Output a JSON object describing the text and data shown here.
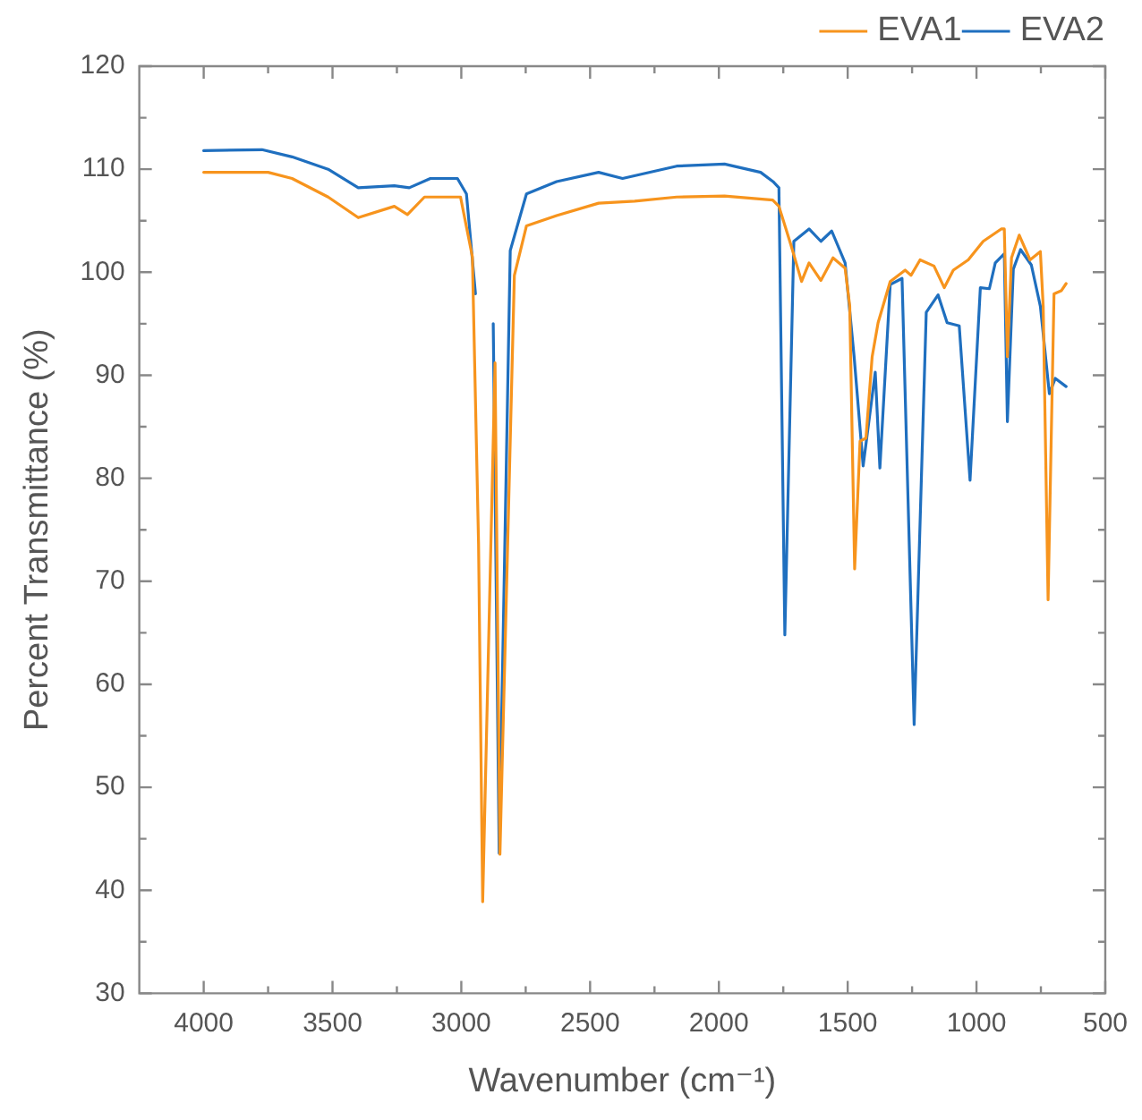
{
  "chart_data": {
    "type": "line",
    "xlabel": "Wavenumber (cm⁻¹)",
    "ylabel": "Percent Transmittance (%)",
    "xlim": [
      4250,
      500
    ],
    "xticks": [
      4000,
      {
        "value": 3750,
        "label": null
      },
      3500,
      {
        "value": 3250,
        "label": null
      },
      3000,
      {
        "value": 2750,
        "label": null
      },
      2500,
      {
        "value": 2250,
        "label": null
      },
      2000,
      {
        "value": 1750,
        "label": null
      },
      1500,
      {
        "value": 1250,
        "label": null
      },
      1000,
      {
        "value": 750,
        "label": null
      },
      500
    ],
    "ylim": [
      30,
      120
    ],
    "yticks": [
      30,
      {
        "value": 35,
        "label": null
      },
      40,
      {
        "value": 45,
        "label": null
      },
      50,
      {
        "value": 55,
        "label": null
      },
      60,
      {
        "value": 65,
        "label": null
      },
      70,
      {
        "value": 75,
        "label": null
      },
      80,
      {
        "value": 85,
        "label": null
      },
      90,
      {
        "value": 95,
        "label": null
      },
      100,
      {
        "value": 105,
        "label": null
      },
      110,
      {
        "value": 115,
        "label": null
      },
      120
    ],
    "grid": false,
    "legend": "top right",
    "marker": "none",
    "line_style": "solid",
    "series": [
      {
        "name": "EVA1",
        "color": "#f7941d",
        "x": [
          4000,
          3750,
          3657,
          3517,
          3400,
          3260,
          3209,
          3143,
          3003,
          2957,
          2933,
          2917,
          2869,
          2850,
          2794,
          2747,
          2630,
          2467,
          2327,
          2164,
          1978,
          1791,
          1767,
          1721,
          1679,
          1650,
          1604,
          1557,
          1510,
          1492,
          1473,
          1452,
          1429,
          1405,
          1382,
          1335,
          1277,
          1254,
          1219,
          1165,
          1125,
          1090,
          1032,
          974,
          904,
          892,
          880,
          864,
          834,
          792,
          752,
          741,
          722,
          699,
          671,
          652
        ],
        "values": [
          109.7,
          109.7,
          109.1,
          107.3,
          105.3,
          106.4,
          105.6,
          107.3,
          107.3,
          101.5,
          73.6,
          38.9,
          91.2,
          43.5,
          99.7,
          104.5,
          105.5,
          106.7,
          106.9,
          107.3,
          107.4,
          107.0,
          106.4,
          102.7,
          99.1,
          100.9,
          99.2,
          101.4,
          100.4,
          96.7,
          71.2,
          83.6,
          83.9,
          91.8,
          95.1,
          99.1,
          100.2,
          99.7,
          101.2,
          100.6,
          98.5,
          100.2,
          101.2,
          103.0,
          104.2,
          104.2,
          91.8,
          101.4,
          103.6,
          101.2,
          102.0,
          96.7,
          68.2,
          97.9,
          98.2,
          98.9
        ]
      },
      {
        "name": "EVA2",
        "color": "#1f6fbf",
        "x": [
          4000,
          3774,
          3657,
          3517,
          3400,
          3260,
          3202,
          3120,
          3015,
          2980,
          2945,
          2917,
          2876,
          2853,
          2810,
          2747,
          2630,
          2467,
          2374,
          2164,
          1978,
          1838,
          1790,
          1767,
          1744,
          1709,
          1650,
          1604,
          1562,
          1510,
          1475,
          1440,
          1393,
          1375,
          1335,
          1289,
          1242,
          1195,
          1149,
          1114,
          1067,
          1025,
          985,
          950,
          927,
          892,
          880,
          857,
          829,
          787,
          752,
          717,
          694,
          652
        ],
        "values": [
          111.8,
          111.9,
          111.2,
          110.0,
          108.2,
          108.4,
          108.2,
          109.1,
          109.1,
          107.6,
          97.9,
          null,
          95.0,
          43.6,
          102.1,
          107.6,
          108.8,
          109.7,
          109.1,
          110.3,
          110.5,
          109.7,
          108.8,
          108.2,
          64.8,
          103.0,
          104.2,
          103.0,
          104.0,
          100.9,
          91.8,
          81.2,
          90.3,
          81.0,
          98.8,
          99.4,
          56.1,
          96.1,
          97.8,
          95.1,
          94.8,
          79.8,
          98.5,
          98.4,
          100.9,
          101.8,
          85.5,
          100.3,
          102.2,
          100.7,
          96.7,
          88.2,
          89.7,
          88.9
        ]
      }
    ]
  }
}
